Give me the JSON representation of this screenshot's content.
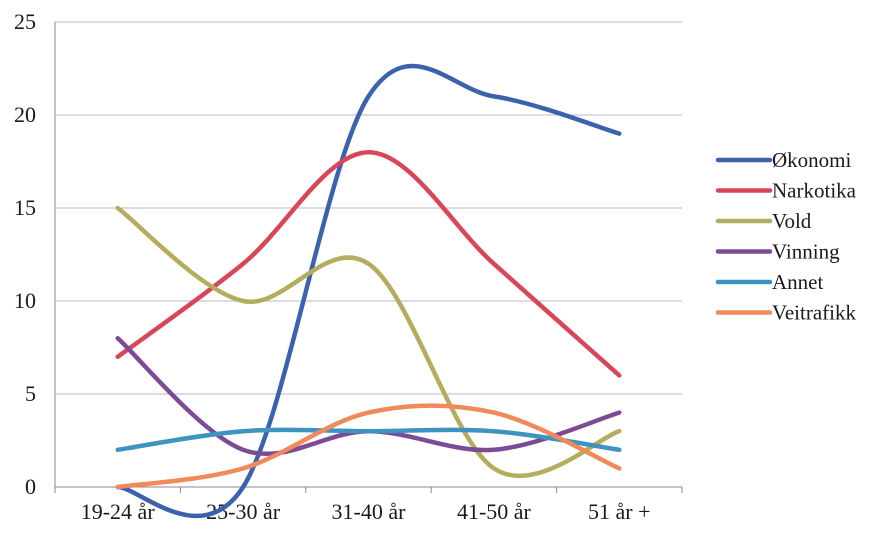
{
  "chart_data": {
    "type": "line",
    "title": "",
    "xlabel": "",
    "ylabel": "",
    "categories": [
      "19-24 år",
      "25-30 år",
      "31-40 år",
      "41-50 år",
      "51 år +"
    ],
    "ylim": [
      0,
      25
    ],
    "yticks": [
      0,
      5,
      10,
      15,
      20,
      25
    ],
    "grid": true,
    "legend_position": "right",
    "series": [
      {
        "name": "Økonomi",
        "color": "#3b63ad",
        "values": [
          0,
          0,
          21,
          21,
          19
        ]
      },
      {
        "name": "Narkotika",
        "color": "#d9465a",
        "values": [
          7,
          12,
          18,
          12,
          6
        ]
      },
      {
        "name": "Vold",
        "color": "#b5ad5e",
        "values": [
          15,
          10,
          12,
          1,
          3
        ]
      },
      {
        "name": "Vinning",
        "color": "#7d4b96",
        "values": [
          8,
          2,
          3,
          2,
          4
        ]
      },
      {
        "name": "Annet",
        "color": "#3f93c0",
        "values": [
          2,
          3,
          3,
          3,
          2
        ]
      },
      {
        "name": "Veitrafikk",
        "color": "#f08a5b",
        "values": [
          0,
          1,
          4,
          4,
          1
        ]
      }
    ]
  }
}
